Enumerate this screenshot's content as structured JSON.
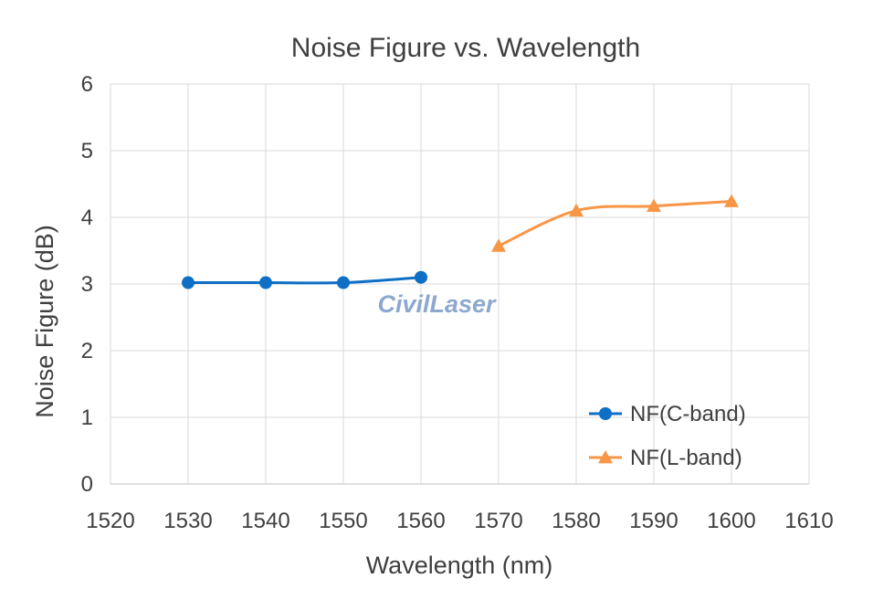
{
  "chart_data": {
    "type": "line",
    "title": "Noise Figure vs. Wavelength",
    "xlabel": "Wavelength (nm)",
    "ylabel": "Noise Figure (dB)",
    "xlim": [
      1520,
      1610
    ],
    "ylim": [
      0,
      6
    ],
    "xticks": [
      1520,
      1530,
      1540,
      1550,
      1560,
      1570,
      1580,
      1590,
      1600,
      1610
    ],
    "yticks": [
      0,
      1,
      2,
      3,
      4,
      5,
      6
    ],
    "grid": true,
    "legend_position": "bottom-right",
    "watermark": "CivilLaser",
    "series": [
      {
        "name": "NF(C-band)",
        "marker": "circle",
        "color": "#0f6fc6",
        "x": [
          1530,
          1540,
          1550,
          1560
        ],
        "y": [
          3.02,
          3.02,
          3.02,
          3.1
        ]
      },
      {
        "name": "NF(L-band)",
        "marker": "triangle",
        "color": "#f79646",
        "x": [
          1570,
          1580,
          1590,
          1600
        ],
        "y": [
          3.57,
          4.1,
          4.17,
          4.24
        ]
      }
    ]
  }
}
